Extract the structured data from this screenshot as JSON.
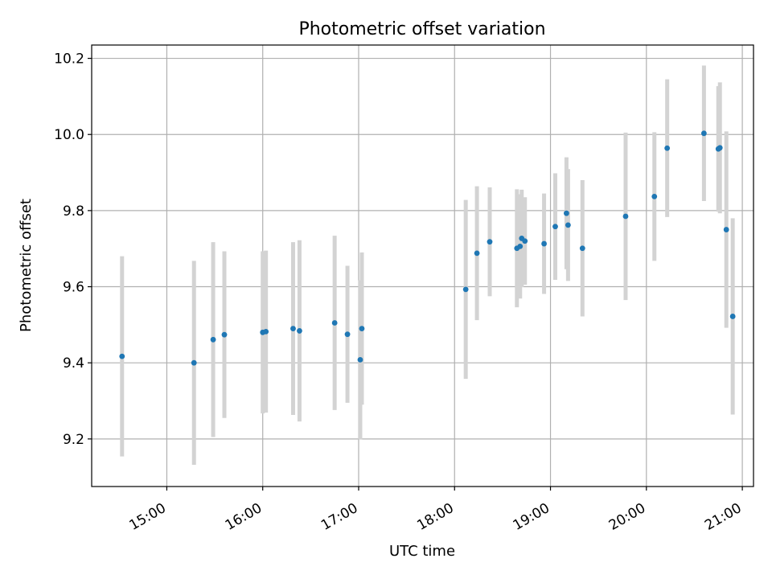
{
  "chart_data": {
    "type": "scatter",
    "title": "Photometric offset variation",
    "xlabel": "UTC time",
    "ylabel": "Photometric offset",
    "grid": true,
    "xlim": [
      "14:13",
      "21:07"
    ],
    "ylim": [
      9.075,
      10.235
    ],
    "x_ticks": [
      "15:00",
      "16:00",
      "17:00",
      "18:00",
      "19:00",
      "20:00",
      "21:00"
    ],
    "y_ticks": [
      9.2,
      9.4,
      9.6,
      9.8,
      10.0,
      10.2
    ],
    "y_tick_labels": [
      "9.2",
      "9.4",
      "9.6",
      "9.8",
      "10.0",
      "10.2"
    ],
    "colors": {
      "point": "#1f77b4",
      "errorbar": "#d3d3d3",
      "grid": "#b0b0b0"
    },
    "series": [
      {
        "points": [
          {
            "x": "14:32",
            "y": 9.417,
            "err": 0.263
          },
          {
            "x": "15:17",
            "y": 9.4,
            "err": 0.268
          },
          {
            "x": "15:29",
            "y": 9.461,
            "err": 0.256
          },
          {
            "x": "15:36",
            "y": 9.474,
            "err": 0.219
          },
          {
            "x": "16:00",
            "y": 9.48,
            "err": 0.213
          },
          {
            "x": "16:02",
            "y": 9.482,
            "err": 0.213
          },
          {
            "x": "16:19",
            "y": 9.49,
            "err": 0.227
          },
          {
            "x": "16:23",
            "y": 9.484,
            "err": 0.238
          },
          {
            "x": "16:45",
            "y": 9.505,
            "err": 0.229
          },
          {
            "x": "16:53",
            "y": 9.475,
            "err": 0.18
          },
          {
            "x": "17:01",
            "y": 9.408,
            "err": 0.209
          },
          {
            "x": "17:02",
            "y": 9.49,
            "err": 0.2
          },
          {
            "x": "18:07",
            "y": 9.593,
            "err": 0.235
          },
          {
            "x": "18:14",
            "y": 9.688,
            "err": 0.176
          },
          {
            "x": "18:22",
            "y": 9.718,
            "err": 0.143
          },
          {
            "x": "18:39",
            "y": 9.701,
            "err": 0.155
          },
          {
            "x": "18:41",
            "y": 9.706,
            "err": 0.137
          },
          {
            "x": "18:42",
            "y": 9.727,
            "err": 0.128
          },
          {
            "x": "18:44",
            "y": 9.72,
            "err": 0.115
          },
          {
            "x": "18:56",
            "y": 9.713,
            "err": 0.132
          },
          {
            "x": "19:03",
            "y": 9.758,
            "err": 0.14
          },
          {
            "x": "19:10",
            "y": 9.793,
            "err": 0.147
          },
          {
            "x": "19:11",
            "y": 9.762,
            "err": 0.147
          },
          {
            "x": "19:20",
            "y": 9.701,
            "err": 0.179
          },
          {
            "x": "19:47",
            "y": 9.785,
            "err": 0.22
          },
          {
            "x": "20:05",
            "y": 9.837,
            "err": 0.169
          },
          {
            "x": "20:13",
            "y": 9.964,
            "err": 0.181
          },
          {
            "x": "20:36",
            "y": 10.003,
            "err": 0.178
          },
          {
            "x": "20:45",
            "y": 9.962,
            "err": 0.165
          },
          {
            "x": "20:46",
            "y": 9.965,
            "err": 0.172
          },
          {
            "x": "20:50",
            "y": 9.75,
            "err": 0.258
          },
          {
            "x": "20:54",
            "y": 9.522,
            "err": 0.258
          }
        ]
      }
    ]
  }
}
